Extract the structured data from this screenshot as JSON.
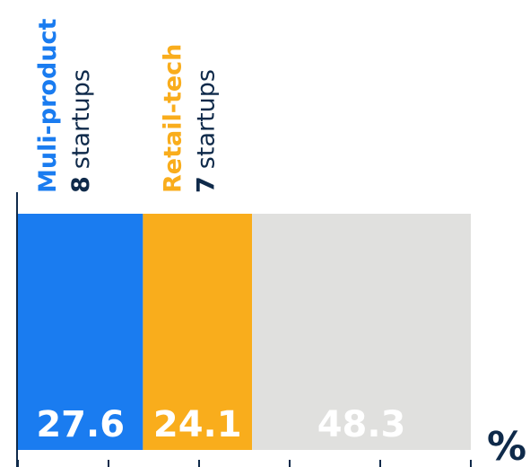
{
  "chart_data": {
    "type": "stacked_bar",
    "series": [
      {
        "name": "Muli-product",
        "color": "#1a7cf0",
        "values": [
          27.6
        ],
        "count": 8,
        "count_unit": "startups"
      },
      {
        "name": "Retail-tech",
        "color": "#f9ad1c",
        "values": [
          24.1
        ],
        "count": 7,
        "count_unit": "startups"
      },
      {
        "color": "#e0e0de",
        "values": [
          48.3
        ]
      }
    ],
    "value_unit": "%",
    "xlim": [
      0,
      100
    ],
    "xticks": [
      0,
      20,
      40,
      60,
      80,
      100
    ]
  }
}
